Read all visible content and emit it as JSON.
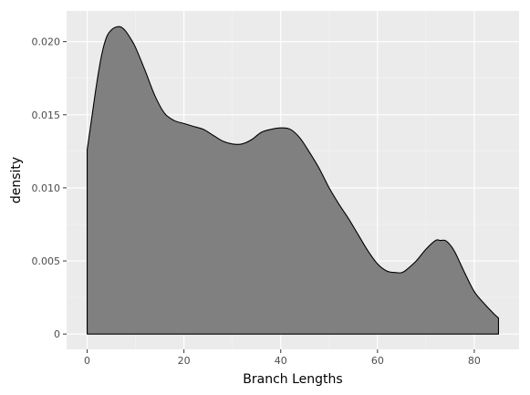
{
  "chart_data": {
    "type": "area",
    "title": "",
    "xlabel": "Branch Lengths",
    "ylabel": "density",
    "xlim": [
      -4.25,
      89.25
    ],
    "ylim": [
      -0.00105,
      0.0221
    ],
    "x_ticks": [
      0,
      20,
      40,
      60,
      80
    ],
    "x_tick_labels": [
      "0",
      "20",
      "40",
      "60",
      "80"
    ],
    "y_ticks": [
      0,
      0.005,
      0.01,
      0.015,
      0.02
    ],
    "y_tick_labels": [
      "0",
      "0.005",
      "0.010",
      "0.015",
      "0.020"
    ],
    "grid": true,
    "legend": "none",
    "series": [
      {
        "x": [
          0,
          1,
          2,
          3,
          4,
          5,
          6,
          7,
          8,
          9,
          10,
          12,
          14,
          16,
          18,
          20,
          22,
          24,
          26,
          28,
          30,
          32,
          34,
          36,
          38,
          40,
          42,
          44,
          46,
          48,
          50,
          52,
          54,
          56,
          58,
          60,
          62,
          64,
          65,
          66,
          68,
          70,
          72,
          73,
          74,
          75,
          76,
          78,
          80,
          82,
          84,
          85
        ],
        "values": [
          0.0126,
          0.0149,
          0.0172,
          0.0191,
          0.0203,
          0.0208,
          0.021,
          0.021,
          0.0207,
          0.0202,
          0.0196,
          0.018,
          0.0163,
          0.0151,
          0.0146,
          0.0144,
          0.0142,
          0.014,
          0.0136,
          0.0132,
          0.013,
          0.013,
          0.0133,
          0.0138,
          0.014,
          0.0141,
          0.014,
          0.0134,
          0.0124,
          0.0113,
          0.01,
          0.0089,
          0.0079,
          0.0068,
          0.0057,
          0.0048,
          0.0043,
          0.0042,
          0.0042,
          0.0044,
          0.005,
          0.0058,
          0.0064,
          0.0064,
          0.0064,
          0.0061,
          0.0056,
          0.0042,
          0.0029,
          0.0021,
          0.0014,
          0.0011
        ]
      }
    ],
    "colors": {
      "fill": "#808080",
      "stroke": "#000000",
      "panel_bg": "#ebebeb",
      "grid_major": "#ffffff",
      "grid_minor": "#f5f5f5",
      "tick_label": "#4d4d4d"
    }
  }
}
